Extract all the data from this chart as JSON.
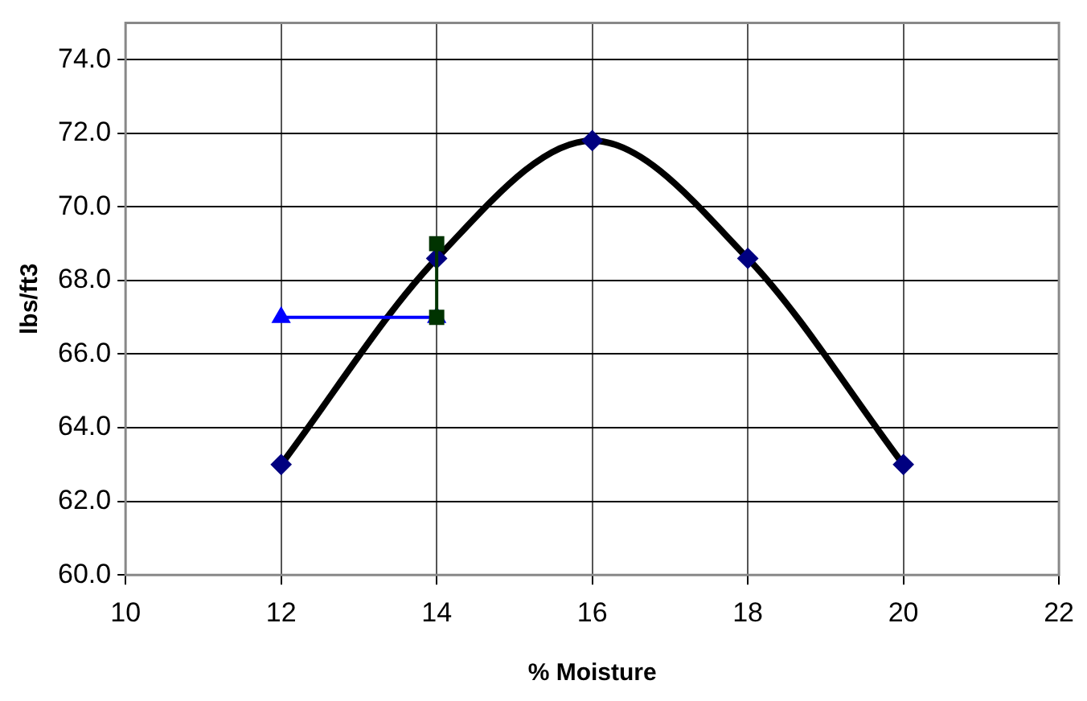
{
  "chart_data": {
    "type": "line",
    "xlabel": "% Moisture",
    "ylabel": "lbs/ft3",
    "xlim": [
      10,
      22
    ],
    "xticks": [
      10,
      12,
      14,
      16,
      18,
      20,
      22
    ],
    "ylim": [
      60,
      75
    ],
    "yticks": [
      {
        "value": 60,
        "label": "60.0"
      },
      {
        "value": 62,
        "label": "62.0"
      },
      {
        "value": 64,
        "label": "64.0"
      },
      {
        "value": 66,
        "label": "66.0"
      },
      {
        "value": 68,
        "label": "68.0"
      },
      {
        "value": 70,
        "label": "70.0"
      },
      {
        "value": 72,
        "label": "72.0"
      },
      {
        "value": 74,
        "label": "74.0"
      }
    ],
    "grid": true,
    "legend": false,
    "line_style": "solid",
    "series": [
      {
        "color": "#000000",
        "colors": [
          "#000080",
          "#000080",
          "#000080",
          "#000080",
          "#000080"
        ],
        "marker": "diamond",
        "x": [
          12,
          14,
          16,
          18,
          20
        ],
        "values": [
          63.0,
          68.6,
          71.8,
          68.6,
          63.0
        ]
      },
      {
        "color": "#0000ff",
        "marker": "triangle",
        "x": [
          12,
          14
        ],
        "values": [
          67.0,
          67.0
        ]
      },
      {
        "color": "#003300",
        "marker": "square",
        "x": [
          14,
          14
        ],
        "values": [
          69.0,
          67.0
        ]
      }
    ]
  }
}
